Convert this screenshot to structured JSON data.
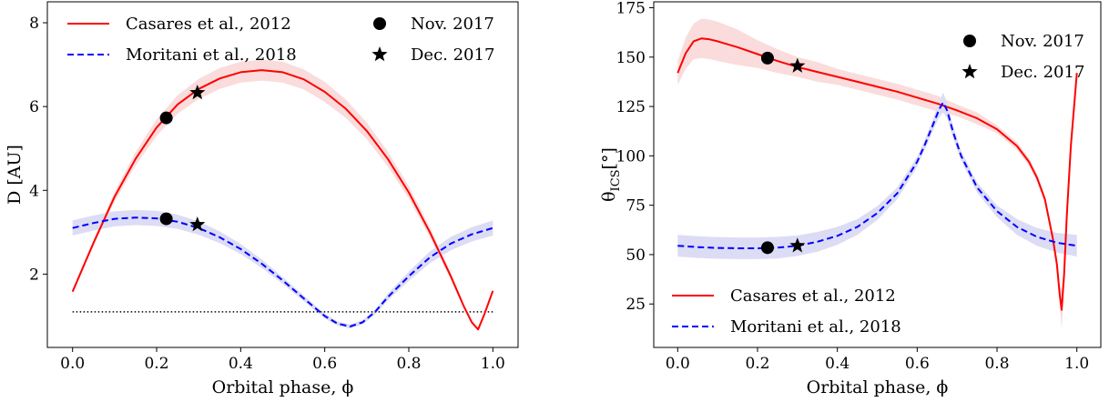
{
  "chart_data": [
    {
      "type": "line",
      "id": "distance",
      "xlabel": "Orbital phase, ϕ",
      "ylabel": "D [AU]",
      "xlim": [
        -0.06,
        1.06
      ],
      "ylim": [
        0.25,
        8.5
      ],
      "xticks": [
        0.0,
        0.2,
        0.4,
        0.6,
        0.8,
        1.0
      ],
      "xtick_labels": [
        "0.0",
        "0.2",
        "0.4",
        "0.6",
        "0.8",
        "1.0"
      ],
      "yticks": [
        2,
        4,
        6,
        8
      ],
      "ytick_labels": [
        "2",
        "4",
        "6",
        "8"
      ],
      "grid": false,
      "hline": {
        "y": 1.1,
        "style": "dotted",
        "color": "#000000"
      },
      "series": [
        {
          "name": "Casares et al., 2012",
          "color": "#ff0000",
          "style": "solid",
          "band_color": "#fadcdc",
          "x": [
            0.0,
            0.05,
            0.1,
            0.15,
            0.2,
            0.25,
            0.3,
            0.35,
            0.4,
            0.45,
            0.5,
            0.55,
            0.6,
            0.65,
            0.7,
            0.75,
            0.8,
            0.85,
            0.9,
            0.93,
            0.95,
            0.965,
            0.98,
            1.0
          ],
          "y": [
            1.58,
            2.75,
            3.85,
            4.75,
            5.5,
            6.05,
            6.42,
            6.67,
            6.82,
            6.87,
            6.82,
            6.65,
            6.35,
            5.95,
            5.42,
            4.75,
            3.95,
            3.0,
            1.95,
            1.25,
            0.85,
            0.68,
            1.05,
            1.6
          ],
          "band": [
            0.0,
            0.06,
            0.12,
            0.16,
            0.2,
            0.22,
            0.24,
            0.25,
            0.25,
            0.25,
            0.25,
            0.24,
            0.24,
            0.22,
            0.2,
            0.18,
            0.15,
            0.12,
            0.08,
            0.05,
            0.03,
            0.03,
            0.03,
            0.03
          ]
        },
        {
          "name": "Moritani et al., 2018",
          "color": "#0000ff",
          "style": "dashed",
          "band_color": "#dcdcf5",
          "x": [
            0.0,
            0.05,
            0.1,
            0.15,
            0.2,
            0.25,
            0.3,
            0.35,
            0.4,
            0.45,
            0.5,
            0.55,
            0.6,
            0.63,
            0.66,
            0.69,
            0.72,
            0.75,
            0.8,
            0.85,
            0.9,
            0.95,
            1.0
          ],
          "y": [
            3.1,
            3.22,
            3.32,
            3.35,
            3.33,
            3.25,
            3.1,
            2.88,
            2.6,
            2.25,
            1.85,
            1.42,
            1.0,
            0.82,
            0.75,
            0.85,
            1.1,
            1.45,
            1.95,
            2.4,
            2.73,
            2.95,
            3.1
          ],
          "band": [
            0.18,
            0.18,
            0.18,
            0.18,
            0.18,
            0.17,
            0.16,
            0.14,
            0.12,
            0.1,
            0.08,
            0.07,
            0.06,
            0.05,
            0.05,
            0.05,
            0.06,
            0.08,
            0.11,
            0.14,
            0.16,
            0.17,
            0.18
          ]
        }
      ],
      "markers": [
        {
          "name": "Nov. 2017",
          "symbol": "circle",
          "points": [
            [
              0.223,
              5.73
            ],
            [
              0.223,
              3.32
            ]
          ]
        },
        {
          "name": "Dec. 2017",
          "symbol": "star",
          "points": [
            [
              0.297,
              6.33
            ],
            [
              0.297,
              3.18
            ]
          ]
        }
      ],
      "legends": [
        {
          "placement": "top-left",
          "items": [
            {
              "label": "Casares et al., 2012",
              "kind": "line",
              "color": "#ff0000",
              "style": "solid"
            },
            {
              "label": "Moritani et al., 2018",
              "kind": "line",
              "color": "#0000ff",
              "style": "dashed"
            }
          ]
        },
        {
          "placement": "top-right",
          "items": [
            {
              "label": "Nov. 2017",
              "kind": "circle"
            },
            {
              "label": "Dec. 2017",
              "kind": "star"
            }
          ]
        }
      ]
    },
    {
      "type": "line",
      "id": "angle",
      "xlabel": "Orbital phase, ϕ",
      "ylabel": "θICS[°]",
      "xlim": [
        -0.06,
        1.06
      ],
      "ylim": [
        3,
        178
      ],
      "xticks": [
        0.0,
        0.2,
        0.4,
        0.6,
        0.8,
        1.0
      ],
      "xtick_labels": [
        "0.0",
        "0.2",
        "0.4",
        "0.6",
        "0.8",
        "1.0"
      ],
      "yticks": [
        25,
        50,
        75,
        100,
        125,
        150,
        175
      ],
      "ytick_labels": [
        "25",
        "50",
        "75",
        "100",
        "125",
        "150",
        "175"
      ],
      "grid": false,
      "series": [
        {
          "name": "Casares et al., 2012",
          "color": "#ff0000",
          "style": "solid",
          "band_color": "#fadcdc",
          "x": [
            0.0,
            0.02,
            0.04,
            0.06,
            0.08,
            0.1,
            0.15,
            0.2,
            0.25,
            0.3,
            0.35,
            0.4,
            0.45,
            0.5,
            0.55,
            0.6,
            0.65,
            0.7,
            0.75,
            0.8,
            0.85,
            0.88,
            0.9,
            0.92,
            0.94,
            0.95,
            0.957,
            0.962,
            0.968,
            0.975,
            0.985,
            1.0
          ],
          "y": [
            142,
            152,
            158,
            159.5,
            159,
            158,
            155,
            151.5,
            148,
            145,
            142.5,
            140,
            137.5,
            135,
            132.5,
            129.5,
            126.5,
            123,
            119,
            113.5,
            105,
            97,
            89,
            78,
            58,
            45,
            30,
            22,
            40,
            70,
            105,
            142
          ],
          "band": [
            6,
            8,
            9,
            10,
            10,
            10,
            9,
            7,
            6,
            5,
            5,
            4,
            4,
            4,
            4,
            4,
            4,
            3,
            3,
            2,
            2,
            2,
            2,
            2,
            2,
            3,
            5,
            10,
            5,
            2,
            1,
            1
          ]
        },
        {
          "name": "Moritani et al., 2018",
          "color": "#0000ff",
          "style": "dashed",
          "band_color": "#dcdcf5",
          "x": [
            0.0,
            0.05,
            0.1,
            0.15,
            0.2,
            0.25,
            0.3,
            0.35,
            0.4,
            0.45,
            0.5,
            0.55,
            0.6,
            0.62,
            0.64,
            0.655,
            0.665,
            0.675,
            0.69,
            0.71,
            0.75,
            0.8,
            0.85,
            0.9,
            0.95,
            1.0
          ],
          "y": [
            54.5,
            53.8,
            53.4,
            53.2,
            53.2,
            53.5,
            54.5,
            56.5,
            59.5,
            64,
            71,
            81,
            97,
            106,
            116,
            123.5,
            127,
            123,
            112,
            100,
            84,
            72,
            64,
            59,
            56,
            54.5
          ],
          "band": [
            5.5,
            5.5,
            5.5,
            5.5,
            5.5,
            5.5,
            5.2,
            5,
            4.5,
            4,
            3.5,
            3,
            2.5,
            2.5,
            3,
            4,
            5,
            4,
            3,
            2.5,
            2.5,
            3,
            4,
            4.5,
            5,
            5.5
          ]
        }
      ],
      "markers": [
        {
          "name": "Nov. 2017",
          "symbol": "circle",
          "points": [
            [
              0.225,
              149.5
            ],
            [
              0.225,
              53.5
            ]
          ]
        },
        {
          "name": "Dec. 2017",
          "symbol": "star",
          "points": [
            [
              0.3,
              145.5
            ],
            [
              0.3,
              54.5
            ]
          ]
        }
      ],
      "legends": [
        {
          "placement": "top-right",
          "items": [
            {
              "label": "Nov. 2017",
              "kind": "circle"
            },
            {
              "label": "Dec. 2017",
              "kind": "star"
            }
          ]
        },
        {
          "placement": "bottom-left",
          "items": [
            {
              "label": "Casares et al., 2012",
              "kind": "line",
              "color": "#ff0000",
              "style": "solid"
            },
            {
              "label": "Moritani et al., 2018",
              "kind": "line",
              "color": "#0000ff",
              "style": "dashed"
            }
          ]
        }
      ]
    }
  ]
}
